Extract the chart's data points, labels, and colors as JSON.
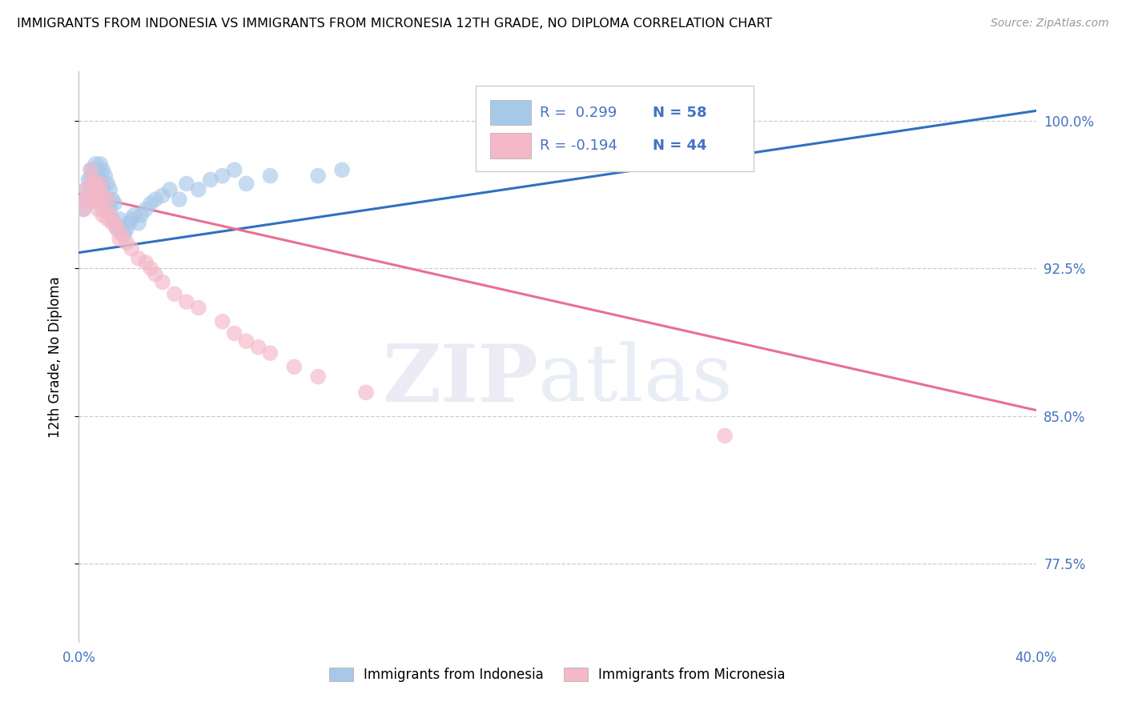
{
  "title": "IMMIGRANTS FROM INDONESIA VS IMMIGRANTS FROM MICRONESIA 12TH GRADE, NO DIPLOMA CORRELATION CHART",
  "source": "Source: ZipAtlas.com",
  "ylabel_label": "12th Grade, No Diploma",
  "legend_blue_r": "R =  0.299",
  "legend_blue_n": "N = 58",
  "legend_pink_r": "R = -0.194",
  "legend_pink_n": "N = 44",
  "legend_label_blue": "Immigrants from Indonesia",
  "legend_label_pink": "Immigrants from Micronesia",
  "blue_color": "#A8C8E8",
  "pink_color": "#F4B8C8",
  "blue_line_color": "#3070C0",
  "pink_line_color": "#E87090",
  "text_color": "#4472C4",
  "xmin": 0.0,
  "xmax": 0.4,
  "ymin": 0.735,
  "ymax": 1.025,
  "ytick_vals": [
    1.0,
    0.925,
    0.85,
    0.775
  ],
  "ytick_labels": [
    "100.0%",
    "92.5%",
    "85.0%",
    "77.5%"
  ],
  "blue_scatter_x": [
    0.002,
    0.003,
    0.003,
    0.004,
    0.004,
    0.005,
    0.005,
    0.005,
    0.006,
    0.006,
    0.006,
    0.007,
    0.007,
    0.007,
    0.008,
    0.008,
    0.008,
    0.009,
    0.009,
    0.009,
    0.01,
    0.01,
    0.01,
    0.011,
    0.011,
    0.012,
    0.012,
    0.013,
    0.013,
    0.014,
    0.014,
    0.015,
    0.015,
    0.016,
    0.017,
    0.018,
    0.019,
    0.02,
    0.021,
    0.022,
    0.023,
    0.025,
    0.026,
    0.028,
    0.03,
    0.032,
    0.035,
    0.038,
    0.042,
    0.045,
    0.05,
    0.055,
    0.06,
    0.065,
    0.07,
    0.08,
    0.1,
    0.11
  ],
  "blue_scatter_y": [
    0.955,
    0.96,
    0.965,
    0.96,
    0.97,
    0.965,
    0.97,
    0.975,
    0.965,
    0.97,
    0.975,
    0.965,
    0.972,
    0.978,
    0.96,
    0.968,
    0.975,
    0.96,
    0.97,
    0.978,
    0.955,
    0.965,
    0.975,
    0.96,
    0.972,
    0.958,
    0.968,
    0.955,
    0.965,
    0.95,
    0.96,
    0.948,
    0.958,
    0.945,
    0.95,
    0.945,
    0.942,
    0.945,
    0.948,
    0.95,
    0.952,
    0.948,
    0.952,
    0.955,
    0.958,
    0.96,
    0.962,
    0.965,
    0.96,
    0.968,
    0.965,
    0.97,
    0.972,
    0.975,
    0.968,
    0.972,
    0.972,
    0.975
  ],
  "pink_scatter_x": [
    0.002,
    0.003,
    0.003,
    0.004,
    0.005,
    0.005,
    0.006,
    0.006,
    0.007,
    0.007,
    0.008,
    0.008,
    0.009,
    0.009,
    0.01,
    0.01,
    0.011,
    0.012,
    0.012,
    0.013,
    0.014,
    0.015,
    0.016,
    0.017,
    0.018,
    0.02,
    0.022,
    0.025,
    0.028,
    0.03,
    0.032,
    0.035,
    0.04,
    0.045,
    0.05,
    0.06,
    0.065,
    0.07,
    0.075,
    0.08,
    0.09,
    0.1,
    0.12,
    0.27
  ],
  "pink_scatter_y": [
    0.955,
    0.96,
    0.965,
    0.958,
    0.968,
    0.975,
    0.96,
    0.97,
    0.96,
    0.968,
    0.955,
    0.965,
    0.958,
    0.968,
    0.952,
    0.962,
    0.955,
    0.95,
    0.96,
    0.952,
    0.948,
    0.948,
    0.945,
    0.94,
    0.942,
    0.938,
    0.935,
    0.93,
    0.928,
    0.925,
    0.922,
    0.918,
    0.912,
    0.908,
    0.905,
    0.898,
    0.892,
    0.888,
    0.885,
    0.882,
    0.875,
    0.87,
    0.862,
    0.84
  ],
  "blue_line_x": [
    0.0,
    0.4
  ],
  "blue_line_y": [
    0.933,
    1.005
  ],
  "pink_line_x": [
    0.0,
    0.4
  ],
  "pink_line_y": [
    0.963,
    0.853
  ]
}
